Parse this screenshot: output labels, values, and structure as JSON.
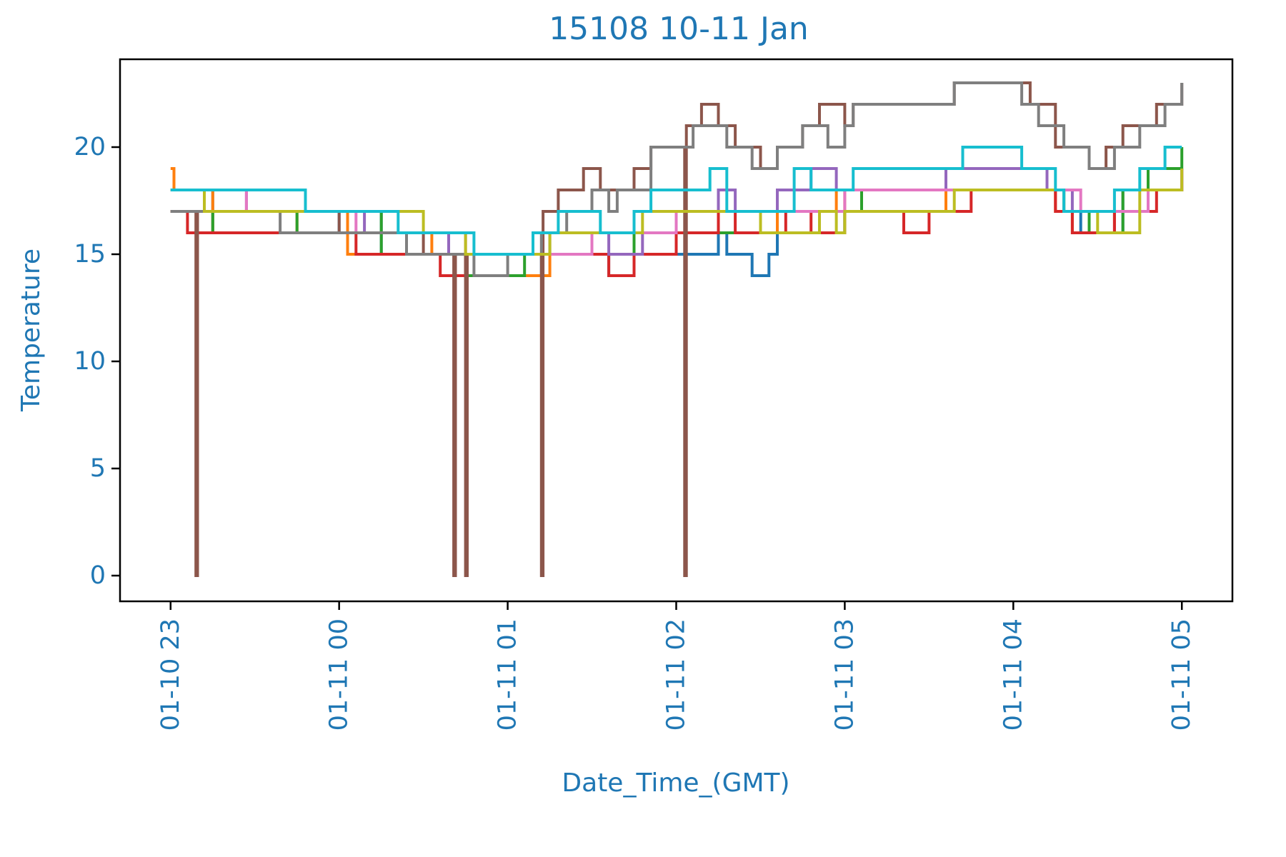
{
  "chart_data": {
    "type": "line",
    "title": "15108 10-11 Jan",
    "xlabel": "Date_Time_(GMT)",
    "ylabel": "Temperature",
    "x_ticks": [
      "01-10 23",
      "01-11 00",
      "01-11 01",
      "01-11 02",
      "01-11 03",
      "01-11 04",
      "01-11 05"
    ],
    "y_ticks": [
      0,
      5,
      10,
      15,
      20
    ],
    "xlim": [
      "01-10 22:42",
      "01-11 05:18"
    ],
    "ylim": [
      -1.2,
      24.1
    ],
    "grid": false,
    "legend": "none",
    "line_style": "step",
    "colors": {
      "text": "#1f77b4",
      "axes": "#000000",
      "background": "#ffffff"
    },
    "series_note_x_units": "clock time GMT (hours), e.g. 23.5 = 23:30 on 01-10, 25.0 = 01:00 on 01-11",
    "series": [
      {
        "color": "#1f77b4",
        "points": [
          [
            23.0,
            18
          ],
          [
            23.25,
            16
          ],
          [
            23.5,
            16
          ],
          [
            23.75,
            16
          ],
          [
            24.0,
            17
          ],
          [
            24.25,
            15
          ],
          [
            24.5,
            15
          ],
          [
            24.7,
            15
          ],
          [
            24.75,
            14
          ],
          [
            25.0,
            14
          ],
          [
            25.2,
            15
          ],
          [
            25.5,
            15
          ],
          [
            25.6,
            14
          ],
          [
            25.75,
            15
          ],
          [
            26.0,
            15
          ],
          [
            26.25,
            16
          ],
          [
            26.3,
            15
          ],
          [
            26.45,
            14
          ],
          [
            26.55,
            15
          ],
          [
            26.6,
            16
          ],
          [
            26.8,
            16
          ],
          [
            27.0,
            17
          ],
          [
            27.5,
            17
          ],
          [
            27.6,
            18
          ],
          [
            28.0,
            18
          ],
          [
            28.3,
            17
          ],
          [
            28.4,
            16
          ],
          [
            28.6,
            16
          ],
          [
            28.65,
            18
          ],
          [
            29.0,
            19
          ]
        ]
      },
      {
        "color": "#ff7f0e",
        "points": [
          [
            23.0,
            19
          ],
          [
            23.02,
            18
          ],
          [
            23.25,
            16
          ],
          [
            23.5,
            16
          ],
          [
            23.75,
            17
          ],
          [
            24.0,
            17
          ],
          [
            24.05,
            15
          ],
          [
            24.3,
            15
          ],
          [
            24.55,
            16
          ],
          [
            24.75,
            14
          ],
          [
            25.0,
            14
          ],
          [
            25.25,
            15
          ],
          [
            25.6,
            15
          ],
          [
            25.75,
            16
          ],
          [
            26.0,
            16
          ],
          [
            26.25,
            16
          ],
          [
            26.6,
            17
          ],
          [
            26.8,
            17
          ],
          [
            26.95,
            18
          ],
          [
            27.0,
            17
          ],
          [
            27.5,
            17
          ],
          [
            27.6,
            18
          ],
          [
            27.9,
            18
          ],
          [
            28.05,
            18
          ],
          [
            28.25,
            17
          ],
          [
            28.35,
            16
          ],
          [
            28.6,
            17
          ],
          [
            28.8,
            18
          ],
          [
            29.0,
            19
          ]
        ]
      },
      {
        "color": "#2ca02c",
        "points": [
          [
            23.0,
            17
          ],
          [
            23.25,
            16
          ],
          [
            23.45,
            16
          ],
          [
            23.65,
            16
          ],
          [
            23.75,
            17
          ],
          [
            24.0,
            17
          ],
          [
            24.25,
            15
          ],
          [
            24.5,
            15
          ],
          [
            24.75,
            14
          ],
          [
            24.95,
            14
          ],
          [
            25.1,
            15
          ],
          [
            25.5,
            15
          ],
          [
            25.75,
            16
          ],
          [
            26.0,
            16
          ],
          [
            26.25,
            16
          ],
          [
            26.55,
            16
          ],
          [
            26.75,
            16
          ],
          [
            27.0,
            17
          ],
          [
            27.1,
            18
          ],
          [
            27.5,
            18
          ],
          [
            27.75,
            18
          ],
          [
            28.0,
            18
          ],
          [
            28.3,
            17
          ],
          [
            28.45,
            16
          ],
          [
            28.65,
            18
          ],
          [
            28.8,
            19
          ],
          [
            29.0,
            20
          ]
        ]
      },
      {
        "color": "#d62728",
        "points": [
          [
            23.0,
            17
          ],
          [
            23.1,
            16
          ],
          [
            23.25,
            16
          ],
          [
            23.5,
            16
          ],
          [
            24.0,
            16
          ],
          [
            24.1,
            15
          ],
          [
            24.25,
            15
          ],
          [
            24.5,
            15
          ],
          [
            24.6,
            14
          ],
          [
            24.75,
            15
          ],
          [
            25.0,
            15
          ],
          [
            25.25,
            15
          ],
          [
            25.5,
            15
          ],
          [
            25.6,
            14
          ],
          [
            25.75,
            15
          ],
          [
            26.0,
            16
          ],
          [
            26.25,
            17
          ],
          [
            26.35,
            16
          ],
          [
            26.65,
            17
          ],
          [
            26.8,
            16
          ],
          [
            27.0,
            17
          ],
          [
            27.35,
            16
          ],
          [
            27.5,
            17
          ],
          [
            27.75,
            18
          ],
          [
            28.0,
            18
          ],
          [
            28.25,
            17
          ],
          [
            28.35,
            16
          ],
          [
            28.6,
            17
          ],
          [
            28.85,
            18
          ],
          [
            29.0,
            18
          ]
        ]
      },
      {
        "color": "#9467bd",
        "points": [
          [
            23.0,
            18
          ],
          [
            23.45,
            17
          ],
          [
            23.75,
            17
          ],
          [
            24.0,
            17
          ],
          [
            24.15,
            16
          ],
          [
            24.5,
            16
          ],
          [
            24.65,
            15
          ],
          [
            24.75,
            15
          ],
          [
            25.0,
            15
          ],
          [
            25.25,
            16
          ],
          [
            25.6,
            15
          ],
          [
            25.8,
            16
          ],
          [
            26.0,
            17
          ],
          [
            26.25,
            18
          ],
          [
            26.35,
            17
          ],
          [
            26.6,
            18
          ],
          [
            26.8,
            19
          ],
          [
            26.95,
            18
          ],
          [
            27.0,
            18
          ],
          [
            27.5,
            18
          ],
          [
            27.6,
            19
          ],
          [
            28.0,
            19
          ],
          [
            28.2,
            18
          ],
          [
            28.35,
            17
          ],
          [
            28.6,
            17
          ],
          [
            28.8,
            18
          ],
          [
            29.0,
            19
          ]
        ]
      },
      {
        "color": "#8c564b",
        "points": [
          [
            23.0,
            17
          ],
          [
            23.15,
            0
          ],
          [
            23.16,
            17
          ],
          [
            24.0,
            16
          ],
          [
            24.5,
            15
          ],
          [
            24.68,
            0
          ],
          [
            24.69,
            15
          ],
          [
            24.75,
            0
          ],
          [
            24.76,
            15
          ],
          [
            25.2,
            0
          ],
          [
            25.21,
            17
          ],
          [
            25.3,
            18
          ],
          [
            25.45,
            19
          ],
          [
            25.55,
            18
          ],
          [
            25.75,
            19
          ],
          [
            25.85,
            20
          ],
          [
            26.05,
            0
          ],
          [
            26.06,
            21
          ],
          [
            26.15,
            22
          ],
          [
            26.25,
            21
          ],
          [
            26.35,
            20
          ],
          [
            26.5,
            19
          ],
          [
            26.6,
            20
          ],
          [
            26.75,
            21
          ],
          [
            26.85,
            22
          ],
          [
            27.0,
            21
          ],
          [
            27.05,
            22
          ],
          [
            27.6,
            22
          ],
          [
            27.65,
            23
          ],
          [
            28.0,
            23
          ],
          [
            28.1,
            22
          ],
          [
            28.25,
            20
          ],
          [
            28.45,
            19
          ],
          [
            28.55,
            20
          ],
          [
            28.65,
            21
          ],
          [
            28.75,
            21
          ],
          [
            28.85,
            22
          ],
          [
            29.0,
            23
          ]
        ]
      },
      {
        "color": "#e377c2",
        "points": [
          [
            23.0,
            18
          ],
          [
            23.3,
            18
          ],
          [
            23.45,
            17
          ],
          [
            23.75,
            17
          ],
          [
            24.0,
            17
          ],
          [
            24.1,
            16
          ],
          [
            24.5,
            16
          ],
          [
            24.75,
            15
          ],
          [
            25.0,
            15
          ],
          [
            25.25,
            15
          ],
          [
            25.5,
            16
          ],
          [
            25.75,
            16
          ],
          [
            26.0,
            17
          ],
          [
            26.3,
            17
          ],
          [
            26.6,
            17
          ],
          [
            27.0,
            18
          ],
          [
            27.5,
            18
          ],
          [
            28.0,
            18
          ],
          [
            28.4,
            17
          ],
          [
            28.6,
            17
          ],
          [
            28.8,
            18
          ],
          [
            29.0,
            19
          ]
        ]
      },
      {
        "color": "#7f7f7f",
        "points": [
          [
            23.0,
            17
          ],
          [
            23.65,
            16
          ],
          [
            23.8,
            16
          ],
          [
            24.0,
            16
          ],
          [
            24.4,
            15
          ],
          [
            24.6,
            15
          ],
          [
            24.8,
            14
          ],
          [
            25.0,
            15
          ],
          [
            25.2,
            16
          ],
          [
            25.35,
            17
          ],
          [
            25.5,
            18
          ],
          [
            25.6,
            17
          ],
          [
            25.65,
            18
          ],
          [
            25.85,
            20
          ],
          [
            26.1,
            21
          ],
          [
            26.3,
            20
          ],
          [
            26.45,
            19
          ],
          [
            26.6,
            20
          ],
          [
            26.75,
            21
          ],
          [
            26.85,
            21
          ],
          [
            26.9,
            20
          ],
          [
            27.0,
            21
          ],
          [
            27.05,
            22
          ],
          [
            27.6,
            22
          ],
          [
            27.65,
            23
          ],
          [
            28.05,
            22
          ],
          [
            28.15,
            21
          ],
          [
            28.3,
            20
          ],
          [
            28.45,
            19
          ],
          [
            28.6,
            20
          ],
          [
            28.75,
            21
          ],
          [
            28.9,
            22
          ],
          [
            29.0,
            23
          ]
        ]
      },
      {
        "color": "#bcbd22",
        "points": [
          [
            23.0,
            18
          ],
          [
            23.2,
            17
          ],
          [
            23.5,
            17
          ],
          [
            23.75,
            17
          ],
          [
            24.0,
            17
          ],
          [
            24.5,
            16
          ],
          [
            24.75,
            15
          ],
          [
            25.0,
            15
          ],
          [
            25.25,
            16
          ],
          [
            25.5,
            16
          ],
          [
            25.8,
            17
          ],
          [
            26.0,
            17
          ],
          [
            26.5,
            16
          ],
          [
            26.85,
            17
          ],
          [
            26.95,
            16
          ],
          [
            27.0,
            17
          ],
          [
            27.5,
            17
          ],
          [
            27.65,
            18
          ],
          [
            28.0,
            18
          ],
          [
            28.3,
            17
          ],
          [
            28.5,
            16
          ],
          [
            28.75,
            18
          ],
          [
            29.0,
            19
          ]
        ]
      },
      {
        "color": "#17becf",
        "points": [
          [
            23.0,
            18
          ],
          [
            23.75,
            18
          ],
          [
            23.8,
            17
          ],
          [
            24.3,
            17
          ],
          [
            24.35,
            16
          ],
          [
            24.75,
            16
          ],
          [
            24.8,
            15
          ],
          [
            25.0,
            15
          ],
          [
            25.15,
            16
          ],
          [
            25.3,
            17
          ],
          [
            25.5,
            17
          ],
          [
            25.55,
            16
          ],
          [
            25.75,
            17
          ],
          [
            25.85,
            18
          ],
          [
            26.0,
            18
          ],
          [
            26.2,
            19
          ],
          [
            26.3,
            17
          ],
          [
            26.55,
            17
          ],
          [
            26.7,
            19
          ],
          [
            26.8,
            18
          ],
          [
            27.05,
            19
          ],
          [
            27.6,
            19
          ],
          [
            27.7,
            20
          ],
          [
            28.05,
            19
          ],
          [
            28.25,
            18
          ],
          [
            28.3,
            17
          ],
          [
            28.6,
            18
          ],
          [
            28.75,
            19
          ],
          [
            28.9,
            20
          ],
          [
            29.0,
            20
          ]
        ]
      }
    ]
  }
}
